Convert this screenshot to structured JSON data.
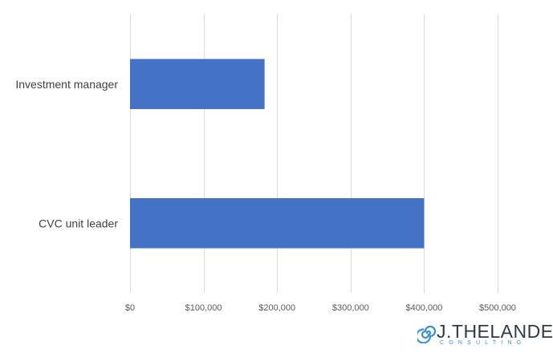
{
  "chart_data": {
    "type": "bar",
    "orientation": "horizontal",
    "categories": [
      "Investment manager",
      "CVC unit leader"
    ],
    "values": [
      183000,
      400000
    ],
    "xlim": [
      0,
      500000
    ],
    "ticks": [
      0,
      100000,
      200000,
      300000,
      400000,
      500000
    ],
    "tick_labels": [
      "$0",
      "$100,000",
      "$200,000",
      "$300,000",
      "$400,000",
      "$500,000"
    ],
    "grid": true,
    "legend": "none",
    "bar_color": "#4472c4",
    "title": "",
    "xlabel": "",
    "ylabel": ""
  },
  "logo": {
    "name": "J.THELANDER",
    "tagline": "CONSULTING",
    "mark_color": "#3a8fd0"
  }
}
